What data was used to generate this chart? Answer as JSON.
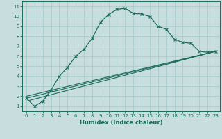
{
  "line1_x": [
    0,
    1,
    2,
    3,
    4,
    5,
    6,
    7,
    8,
    9,
    10,
    11,
    12,
    13,
    14,
    15,
    16,
    17,
    18,
    19,
    20,
    21,
    22,
    23
  ],
  "line1_y": [
    1.8,
    1.0,
    1.5,
    2.6,
    4.0,
    4.9,
    6.0,
    6.7,
    7.8,
    9.4,
    10.2,
    10.7,
    10.8,
    10.3,
    10.25,
    10.0,
    9.0,
    8.7,
    7.7,
    7.4,
    7.3,
    6.5,
    6.4,
    6.5
  ],
  "line2_x": [
    0,
    23
  ],
  "line2_y": [
    1.5,
    6.5
  ],
  "line3_x": [
    0,
    23
  ],
  "line3_y": [
    1.8,
    6.5
  ],
  "line4_x": [
    0,
    23
  ],
  "line4_y": [
    2.0,
    6.5
  ],
  "line_color": "#1a6b5a",
  "bg_color": "#c8dede",
  "grid_color": "#a8cccc",
  "xlabel": "Humidex (Indice chaleur)",
  "xlim": [
    -0.5,
    23.5
  ],
  "ylim": [
    0.5,
    11.5
  ],
  "xticks": [
    0,
    1,
    2,
    3,
    4,
    5,
    6,
    7,
    8,
    9,
    10,
    11,
    12,
    13,
    14,
    15,
    16,
    17,
    18,
    19,
    20,
    21,
    22,
    23
  ],
  "yticks": [
    1,
    2,
    3,
    4,
    5,
    6,
    7,
    8,
    9,
    10,
    11
  ],
  "xlabel_fontsize": 6.0,
  "tick_fontsize": 5.0
}
